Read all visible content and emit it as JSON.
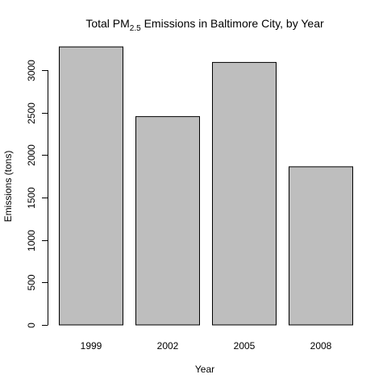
{
  "chart_data": {
    "type": "bar",
    "title": {
      "prefix": "Total PM",
      "subscript": "2.5",
      "suffix": " Emissions in Baltimore City, by Year"
    },
    "xlabel": "Year",
    "ylabel": "Emissions (tons)",
    "categories": [
      "1999",
      "2002",
      "2005",
      "2008"
    ],
    "values": [
      3274,
      2453,
      3091,
      1862
    ],
    "ylim": [
      0,
      3300
    ],
    "yticks": [
      0,
      500,
      1000,
      1500,
      2000,
      2500,
      3000
    ],
    "bar_color": "#BEBEBE",
    "grid": false,
    "legend": "none"
  }
}
